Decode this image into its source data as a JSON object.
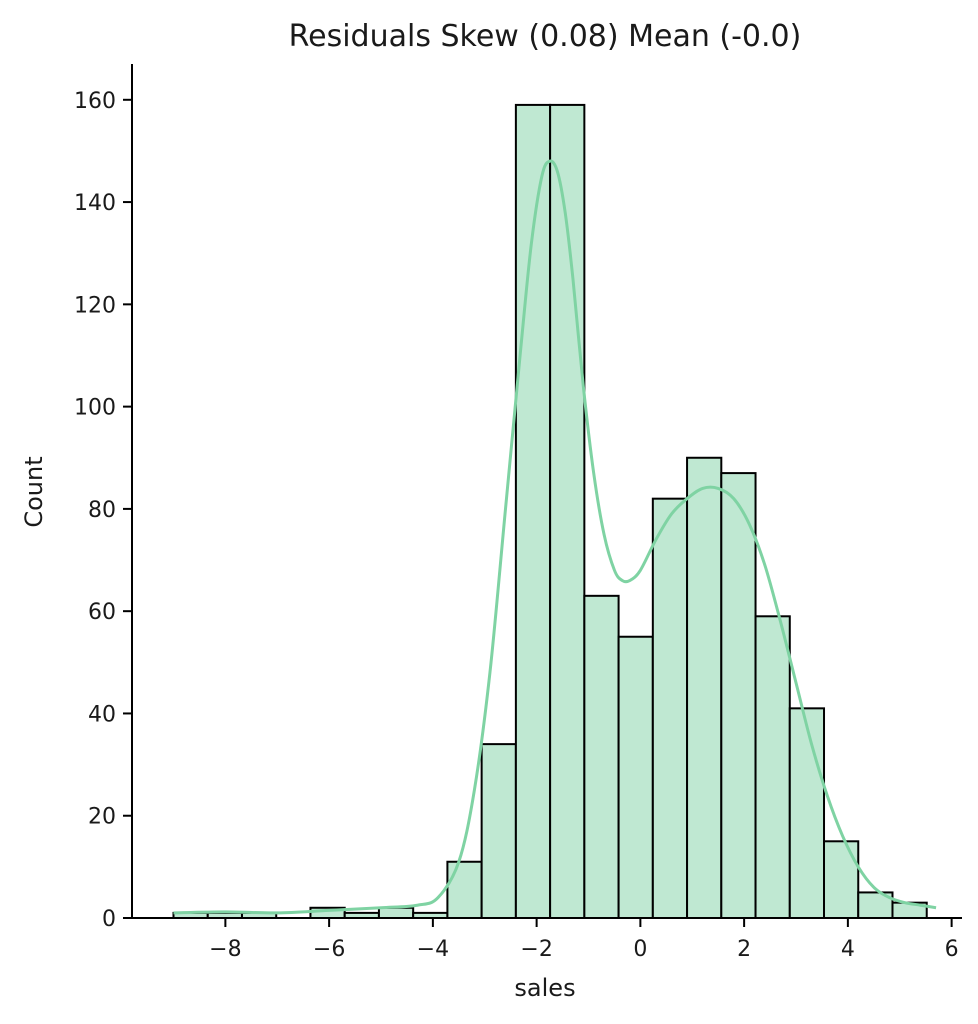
{
  "chart_data": {
    "type": "bar",
    "subtype": "histogram-with-kde",
    "title": "Residuals Skew (0.08) Mean (-0.0)",
    "xlabel": "sales",
    "ylabel": "Count",
    "xlim": [
      -9.8,
      6.2
    ],
    "ylim": [
      0,
      167
    ],
    "x_ticks": [
      -8,
      -6,
      -4,
      0,
      2,
      4,
      6
    ],
    "x_tick_labels": [
      "−8",
      "−6",
      "−4",
      "0",
      "2",
      "4",
      "6"
    ],
    "x_ticks_all": [
      -8,
      -6,
      -4,
      -2,
      0,
      2,
      4,
      6
    ],
    "x_tick_labels_all": [
      "−8",
      "−6",
      "−4",
      "−2",
      "0",
      "2",
      "4",
      "6"
    ],
    "y_ticks": [
      0,
      20,
      40,
      60,
      80,
      100,
      120,
      140,
      160
    ],
    "y_tick_labels": [
      "0",
      "20",
      "40",
      "60",
      "80",
      "100",
      "120",
      "140",
      "160"
    ],
    "bins": {
      "start": -9.0,
      "width": 0.66,
      "counts": [
        1,
        1,
        1,
        0,
        2,
        1,
        2,
        1,
        11,
        34,
        159,
        159,
        63,
        55,
        82,
        90,
        87,
        59,
        41,
        15,
        5,
        3
      ]
    },
    "kde": {
      "x": [
        -9.0,
        -8.0,
        -7.0,
        -6.0,
        -5.0,
        -4.3,
        -3.9,
        -3.5,
        -3.2,
        -2.9,
        -2.6,
        -2.3,
        -2.1,
        -1.9,
        -1.75,
        -1.6,
        -1.45,
        -1.3,
        -1.1,
        -0.9,
        -0.7,
        -0.5,
        -0.35,
        -0.2,
        0.0,
        0.3,
        0.6,
        0.9,
        1.2,
        1.5,
        1.8,
        2.1,
        2.4,
        2.7,
        3.0,
        3.3,
        3.6,
        3.9,
        4.2,
        4.5,
        4.8,
        5.1,
        5.4,
        5.7
      ],
      "y": [
        1,
        1.2,
        1,
        1.5,
        2,
        2.5,
        4,
        11,
        25,
        48,
        80,
        112,
        132,
        145,
        148,
        146,
        138,
        125,
        104,
        87,
        75,
        68,
        66,
        66,
        68,
        74,
        79,
        82,
        84,
        84,
        82,
        77,
        69,
        58,
        46,
        34,
        24,
        16,
        10,
        6,
        4,
        3,
        2.5,
        2
      ]
    },
    "colors": {
      "bar_fill": "#bfe8d2",
      "bar_edge": "#000000",
      "kde_line": "#7fd3a3"
    },
    "grid": false,
    "legend": "none"
  }
}
